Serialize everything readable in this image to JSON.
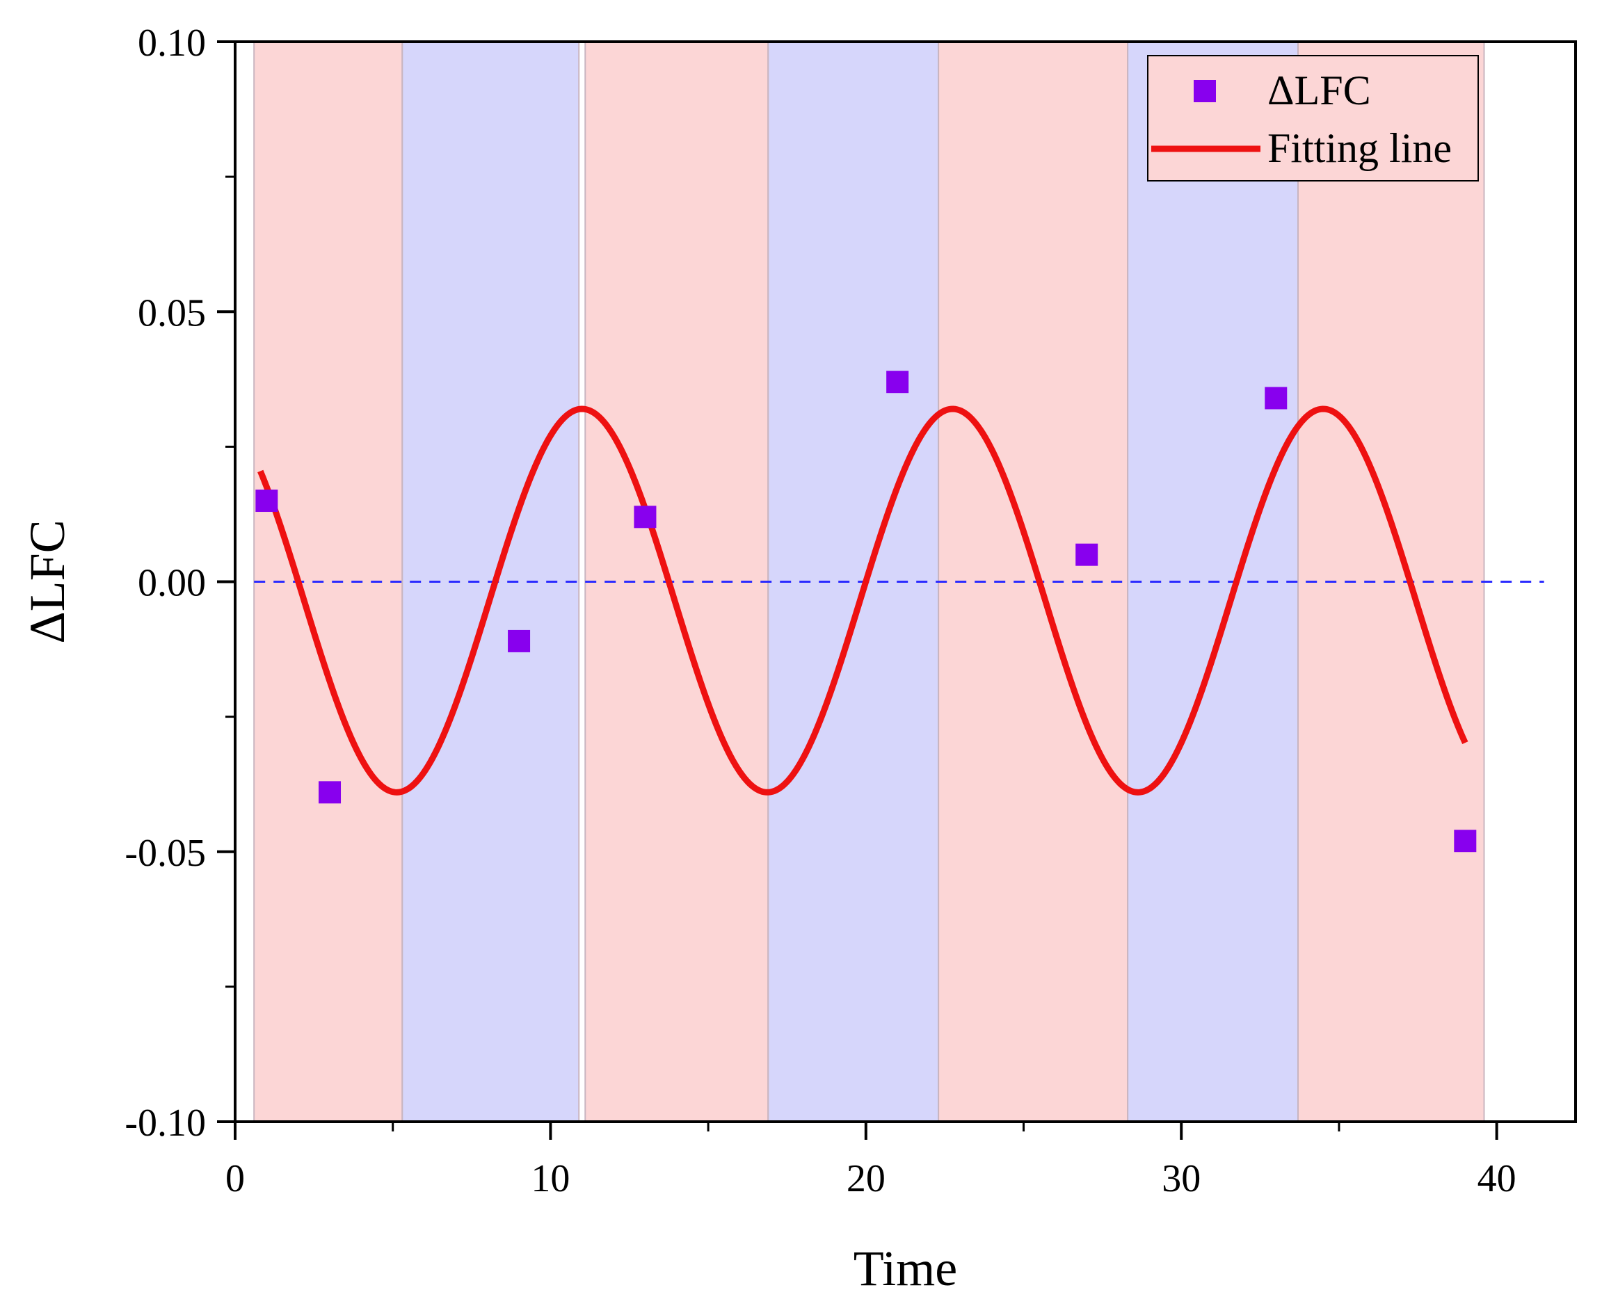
{
  "chart_data": {
    "type": "scatter",
    "title": "",
    "xlabel": "Time",
    "ylabel": "ΔLFC",
    "xlim": [
      0,
      42.5
    ],
    "ylim": [
      -0.1,
      0.1
    ],
    "x_ticks": [
      0,
      10,
      20,
      30,
      40
    ],
    "x_tick_labels": [
      "0",
      "10",
      "20",
      "30",
      "40"
    ],
    "y_ticks": [
      -0.1,
      -0.05,
      0.0,
      0.05,
      0.1
    ],
    "y_tick_labels": [
      "-0.10",
      "-0.05",
      "0.00",
      "0.05",
      "0.10"
    ],
    "grid": false,
    "reference_line": {
      "y": 0.0,
      "style": "dashed",
      "color": "#2b2bff"
    },
    "shaded_bands": [
      {
        "x0": 0.6,
        "x1": 5.3,
        "color": "#fcd6d6"
      },
      {
        "x0": 5.3,
        "x1": 10.9,
        "color": "#d6d6fb"
      },
      {
        "x0": 11.1,
        "x1": 16.9,
        "color": "#fcd6d6"
      },
      {
        "x0": 16.9,
        "x1": 22.3,
        "color": "#d6d6fb"
      },
      {
        "x0": 22.3,
        "x1": 28.3,
        "color": "#fcd6d6"
      },
      {
        "x0": 28.3,
        "x1": 33.7,
        "color": "#d6d6fb"
      },
      {
        "x0": 33.7,
        "x1": 39.6,
        "color": "#fcd6d6"
      }
    ],
    "series": [
      {
        "name": "ΔLFC",
        "kind": "scatter",
        "marker": "square",
        "color": "#8800ee",
        "x": [
          1,
          3,
          9,
          13,
          21,
          27,
          33,
          39
        ],
        "y": [
          0.015,
          -0.039,
          -0.011,
          0.012,
          0.037,
          0.005,
          0.034,
          -0.048
        ]
      },
      {
        "name": "Fitting line",
        "kind": "line",
        "color": "#ee1111",
        "model": "y = y0 + A*cos(2*pi*(x - xc)/T)",
        "params": {
          "y0": -0.0035,
          "A": 0.0355,
          "xc": 11.0,
          "T": 11.75
        },
        "x_range": [
          0.8,
          39.0
        ]
      }
    ],
    "legend": {
      "position": "top-right",
      "entries": [
        {
          "label": "ΔLFC",
          "symbol": "square"
        },
        {
          "label": "Fitting line",
          "symbol": "line"
        }
      ]
    }
  }
}
